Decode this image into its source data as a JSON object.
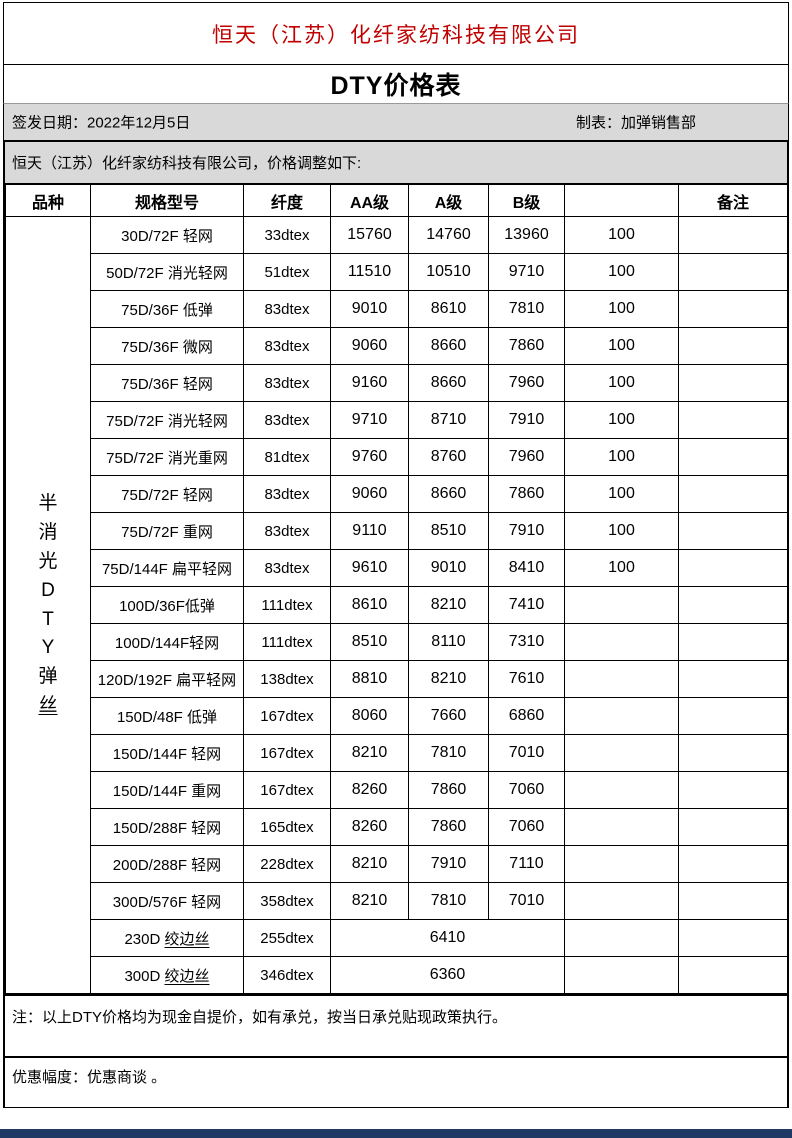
{
  "header": {
    "company_title": "恒天（江苏）化纤家纺科技有限公司",
    "doc_title": "DTY价格表",
    "issue_date": "签发日期：2022年12月5日",
    "prepared_by": "制表：加弹销售部",
    "adjustment_note": "恒天（江苏）化纤家纺科技有限公司，价格调整如下:"
  },
  "table": {
    "headers": [
      "品种",
      "规格型号",
      "纤度",
      "AA级",
      "A级",
      "B级",
      "",
      "备注"
    ],
    "category": "半消光DTY弹丝",
    "rows": [
      {
        "spec": "30D/72F 轻网",
        "dtex": "33dtex",
        "aa": "15760",
        "a": "14760",
        "b": "13960",
        "extra": "100",
        "remark": ""
      },
      {
        "spec": "50D/72F 消光轻网",
        "dtex": "51dtex",
        "aa": "11510",
        "a": "10510",
        "b": "9710",
        "extra": "100",
        "remark": ""
      },
      {
        "spec": "75D/36F 低弹",
        "dtex": "83dtex",
        "aa": "9010",
        "a": "8610",
        "b": "7810",
        "extra": "100",
        "remark": ""
      },
      {
        "spec": "75D/36F 微网",
        "dtex": "83dtex",
        "aa": "9060",
        "a": "8660",
        "b": "7860",
        "extra": "100",
        "remark": ""
      },
      {
        "spec": "75D/36F 轻网",
        "dtex": "83dtex",
        "aa": "9160",
        "a": "8660",
        "b": "7960",
        "extra": "100",
        "remark": ""
      },
      {
        "spec": "75D/72F 消光轻网",
        "dtex": "83dtex",
        "aa": "9710",
        "a": "8710",
        "b": "7910",
        "extra": "100",
        "remark": ""
      },
      {
        "spec": "75D/72F 消光重网",
        "dtex": "81dtex",
        "aa": "9760",
        "a": "8760",
        "b": "7960",
        "extra": "100",
        "remark": ""
      },
      {
        "spec": "75D/72F 轻网",
        "dtex": "83dtex",
        "aa": "9060",
        "a": "8660",
        "b": "7860",
        "extra": "100",
        "remark": ""
      },
      {
        "spec": "75D/72F 重网",
        "dtex": "83dtex",
        "aa": "9110",
        "a": "8510",
        "b": "7910",
        "extra": "100",
        "remark": ""
      },
      {
        "spec": "75D/144F 扁平轻网",
        "dtex": "83dtex",
        "aa": "9610",
        "a": "9010",
        "b": "8410",
        "extra": "100",
        "remark": ""
      },
      {
        "spec": "100D/36F低弹",
        "dtex": "111dtex",
        "aa": "8610",
        "a": "8210",
        "b": "7410",
        "extra": "",
        "remark": ""
      },
      {
        "spec": "100D/144F轻网",
        "dtex": "111dtex",
        "aa": "8510",
        "a": "8110",
        "b": "7310",
        "extra": "",
        "remark": ""
      },
      {
        "spec": "120D/192F 扁平轻网",
        "dtex": "138dtex",
        "aa": "8810",
        "a": "8210",
        "b": "7610",
        "extra": "",
        "remark": ""
      },
      {
        "spec": "150D/48F 低弹",
        "dtex": "167dtex",
        "aa": "8060",
        "a": "7660",
        "b": "6860",
        "extra": "",
        "remark": ""
      },
      {
        "spec": "150D/144F 轻网",
        "dtex": "167dtex",
        "aa": "8210",
        "a": "7810",
        "b": "7010",
        "extra": "",
        "remark": ""
      },
      {
        "spec": "150D/144F 重网",
        "dtex": "167dtex",
        "aa": "8260",
        "a": "7860",
        "b": "7060",
        "extra": "",
        "remark": ""
      },
      {
        "spec": "150D/288F 轻网",
        "dtex": "165dtex",
        "aa": "8260",
        "a": "7860",
        "b": "7060",
        "extra": "",
        "remark": ""
      },
      {
        "spec": "200D/288F 轻网",
        "dtex": "228dtex",
        "aa": "8210",
        "a": "7910",
        "b": "7110",
        "extra": "",
        "remark": ""
      },
      {
        "spec": "300D/576F 轻网",
        "dtex": "358dtex",
        "aa": "8210",
        "a": "7810",
        "b": "7010",
        "extra": "",
        "remark": ""
      },
      {
        "spec_prefix": "230D ",
        "spec_underlined": "绞边丝",
        "dtex": "255dtex",
        "price_merged": "6410",
        "extra": "",
        "remark": ""
      },
      {
        "spec_prefix": "300D ",
        "spec_underlined": "绞边丝",
        "dtex": "346dtex",
        "price_merged": "6360",
        "extra": "",
        "remark": ""
      }
    ]
  },
  "footer": {
    "footnote": "注：以上DTY价格均为现金自提价，如有承兑，按当日承兑贴现政策执行。",
    "discount_note": "优惠幅度：优惠商谈 。"
  },
  "colors": {
    "title_red": "#C00000",
    "band_gray": "#D9D9D9",
    "bottom_bar_navy": "#1F3864",
    "border_black": "#000000"
  }
}
